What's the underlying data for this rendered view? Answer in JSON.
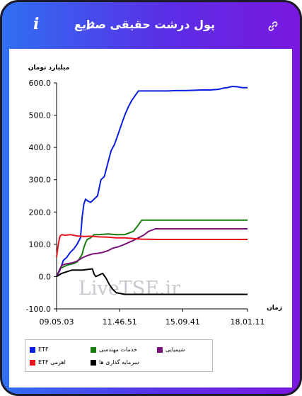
{
  "header": {
    "title": "پول درشت حقیقی صنایع"
  },
  "watermark": "LiveTSE.ir",
  "chart_data": {
    "type": "line",
    "ylabel": "میلیارد تومان",
    "xlabel": "زمان",
    "ylim": [
      -100,
      600
    ],
    "yticks": [
      -100,
      0,
      100,
      200,
      300,
      400,
      500,
      600
    ],
    "yticklabels": [
      "-100.0",
      "0.0",
      "100.0",
      "200.0",
      "300.0",
      "400.0",
      "500.0",
      "600.0"
    ],
    "xticks": [
      0,
      37,
      74,
      112
    ],
    "xticklabels": [
      "09.05.03",
      "11.46.51",
      "15.09.41",
      "18.01.11"
    ],
    "xrange": [
      0,
      112
    ],
    "grid": false,
    "legend_position": "bottom",
    "series": [
      {
        "name": "ETF",
        "color": "#0a1ee0",
        "x": [
          0,
          2,
          4,
          6,
          8,
          10,
          12,
          14,
          15,
          16,
          17,
          18,
          20,
          22,
          24,
          26,
          28,
          30,
          32,
          34,
          36,
          38,
          40,
          42,
          44,
          46,
          48,
          50,
          52,
          55,
          60,
          65,
          70,
          75,
          80,
          85,
          90,
          95,
          98,
          100,
          103,
          106,
          109,
          112
        ],
        "y": [
          0,
          20,
          50,
          60,
          75,
          85,
          100,
          120,
          185,
          225,
          240,
          235,
          230,
          240,
          250,
          300,
          310,
          350,
          390,
          410,
          440,
          470,
          500,
          525,
          545,
          560,
          575,
          575,
          575,
          575,
          575,
          575,
          576,
          576,
          577,
          578,
          578,
          580,
          584,
          585,
          589,
          588,
          585,
          585
        ]
      },
      {
        "name": "خدمات مهندسی",
        "color": "#1a7d10",
        "x": [
          0,
          2,
          4,
          6,
          8,
          10,
          12,
          14,
          15,
          16,
          17,
          18,
          20,
          22,
          25,
          30,
          35,
          40,
          45,
          48,
          50,
          55,
          60,
          70,
          80,
          90,
          100,
          112
        ],
        "y": [
          0,
          25,
          30,
          35,
          38,
          40,
          45,
          60,
          70,
          90,
          105,
          115,
          120,
          130,
          130,
          132,
          130,
          130,
          140,
          160,
          175,
          175,
          175,
          175,
          175,
          175,
          175,
          175
        ]
      },
      {
        "name": "شیمیایی",
        "color": "#7a127a",
        "x": [
          0,
          3,
          6,
          9,
          12,
          15,
          18,
          21,
          24,
          27,
          30,
          33,
          36,
          39,
          42,
          45,
          48,
          51,
          54,
          58,
          65,
          75,
          85,
          95,
          105,
          112
        ],
        "y": [
          0,
          35,
          40,
          42,
          48,
          58,
          65,
          70,
          72,
          75,
          80,
          88,
          92,
          98,
          105,
          112,
          120,
          128,
          140,
          148,
          148,
          148,
          148,
          148,
          148,
          148
        ]
      },
      {
        "name": "اهرمی ETF",
        "color": "#e8141c",
        "x": [
          0,
          1,
          2,
          3,
          5,
          8,
          12,
          16,
          20,
          25,
          30,
          35,
          40,
          50,
          60,
          70,
          80,
          90,
          100,
          112
        ],
        "y": [
          60,
          100,
          125,
          130,
          128,
          130,
          126,
          124,
          125,
          123,
          122,
          120,
          120,
          116,
          115,
          115,
          115,
          115,
          115,
          115
        ]
      },
      {
        "name": "سرمایه گذاری ها",
        "color": "#000000",
        "x": [
          0,
          3,
          6,
          9,
          12,
          15,
          18,
          21,
          22,
          23,
          25,
          27,
          29,
          31,
          33,
          35,
          37,
          40,
          45,
          50,
          55,
          60,
          70,
          80,
          90,
          100,
          112
        ],
        "y": [
          0,
          10,
          15,
          20,
          20,
          20,
          22,
          24,
          8,
          0,
          5,
          10,
          -5,
          -25,
          -40,
          -50,
          -52,
          -55,
          -55,
          -55,
          -55,
          -55,
          -55,
          -55,
          -55,
          -55,
          -55
        ]
      }
    ]
  }
}
